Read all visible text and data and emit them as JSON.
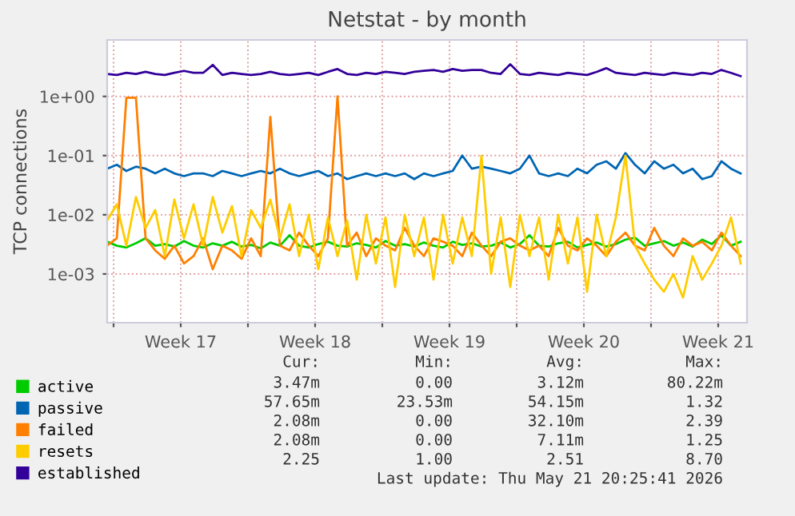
{
  "chart_data": {
    "type": "line",
    "title": "Netstat - by month",
    "ylabel": "TCP connections",
    "log": "y",
    "grid": true,
    "legend": "bottom left",
    "marker": "none",
    "line_style": "solid",
    "xlim": [
      "2026-04-19T16:00",
      "2026-05-23T00:00"
    ],
    "ylim": [
      0.00015,
      9
    ],
    "xticks": [
      {
        "value": "2026-04-20",
        "label": null
      },
      {
        "value": "2026-04-23T12:00",
        "label": "Week 17"
      },
      {
        "value": "2026-04-27",
        "label": null
      },
      {
        "value": "2026-04-30T12:00",
        "label": "Week 18"
      },
      {
        "value": "2026-05-04",
        "label": null
      },
      {
        "value": "2026-05-07T12:00",
        "label": "Week 19"
      },
      {
        "value": "2026-05-11",
        "label": null
      },
      {
        "value": "2026-05-14T12:00",
        "label": "Week 20"
      },
      {
        "value": "2026-05-18",
        "label": null
      },
      {
        "value": "2026-05-21T12:00",
        "label": "Week 21"
      }
    ],
    "yticks": [
      {
        "value": 1,
        "label": "1e+00"
      },
      {
        "value": 0.1,
        "label": "1e-01"
      },
      {
        "value": 0.01,
        "label": "1e-02"
      },
      {
        "value": 0.001,
        "label": "1e-03"
      }
    ],
    "x": [
      "2026-04-19T16:00",
      "2026-04-20T04:00",
      "2026-04-20T16:00",
      "2026-04-21T04:00",
      "2026-04-21T16:00",
      "2026-04-22T04:00",
      "2026-04-22T16:00",
      "2026-04-23T04:00",
      "2026-04-23T16:00",
      "2026-04-24T04:00",
      "2026-04-24T16:00",
      "2026-04-25T04:00",
      "2026-04-25T16:00",
      "2026-04-26T04:00",
      "2026-04-26T16:00",
      "2026-04-27T04:00",
      "2026-04-27T16:00",
      "2026-04-28T04:00",
      "2026-04-28T16:00",
      "2026-04-29T04:00",
      "2026-04-29T16:00",
      "2026-04-30T04:00",
      "2026-04-30T16:00",
      "2026-05-01T04:00",
      "2026-05-01T16:00",
      "2026-05-02T04:00",
      "2026-05-02T16:00",
      "2026-05-03T04:00",
      "2026-05-03T16:00",
      "2026-05-04T04:00",
      "2026-05-04T16:00",
      "2026-05-05T04:00",
      "2026-05-05T16:00",
      "2026-05-06T04:00",
      "2026-05-06T16:00",
      "2026-05-07T04:00",
      "2026-05-07T16:00",
      "2026-05-08T04:00",
      "2026-05-08T16:00",
      "2026-05-09T04:00",
      "2026-05-09T16:00",
      "2026-05-10T04:00",
      "2026-05-10T16:00",
      "2026-05-11T04:00",
      "2026-05-11T16:00",
      "2026-05-12T04:00",
      "2026-05-12T16:00",
      "2026-05-13T04:00",
      "2026-05-13T16:00",
      "2026-05-14T04:00",
      "2026-05-14T16:00",
      "2026-05-15T04:00",
      "2026-05-15T16:00",
      "2026-05-16T04:00",
      "2026-05-16T16:00",
      "2026-05-17T04:00",
      "2026-05-17T16:00",
      "2026-05-18T04:00",
      "2026-05-18T16:00",
      "2026-05-19T04:00",
      "2026-05-19T16:00",
      "2026-05-20T04:00",
      "2026-05-20T16:00",
      "2026-05-21T04:00",
      "2026-05-21T16:00",
      "2026-05-22T04:00",
      "2026-05-22T16:00"
    ],
    "series": [
      {
        "name": "active",
        "color": "#00cc00",
        "values": [
          0.0035,
          0.003,
          0.0028,
          0.0033,
          0.004,
          0.003,
          0.0032,
          0.0029,
          0.0036,
          0.003,
          0.0028,
          0.0033,
          0.003,
          0.0035,
          0.0029,
          0.0031,
          0.0027,
          0.0034,
          0.003,
          0.0045,
          0.003,
          0.0028,
          0.0032,
          0.0035,
          0.003,
          0.0029,
          0.0033,
          0.0031,
          0.0028,
          0.0036,
          0.003,
          0.0032,
          0.0029,
          0.0034,
          0.003,
          0.0028,
          0.0035,
          0.0031,
          0.0033,
          0.0029,
          0.003,
          0.0034,
          0.0028,
          0.0032,
          0.0045,
          0.003,
          0.0029,
          0.0033,
          0.0035,
          0.0028,
          0.0031,
          0.0034,
          0.0029,
          0.0032,
          0.0038,
          0.0041,
          0.003,
          0.0033,
          0.0036,
          0.003,
          0.0034,
          0.0029,
          0.0038,
          0.0032,
          0.0045,
          0.003,
          0.0035
        ]
      },
      {
        "name": "passive",
        "color": "#0066b3",
        "values": [
          0.06,
          0.07,
          0.055,
          0.065,
          0.06,
          0.05,
          0.06,
          0.05,
          0.045,
          0.05,
          0.05,
          0.045,
          0.055,
          0.05,
          0.045,
          0.05,
          0.055,
          0.05,
          0.06,
          0.05,
          0.045,
          0.05,
          0.055,
          0.045,
          0.05,
          0.04,
          0.045,
          0.05,
          0.045,
          0.05,
          0.045,
          0.05,
          0.04,
          0.05,
          0.045,
          0.05,
          0.055,
          0.1,
          0.06,
          0.065,
          0.06,
          0.055,
          0.05,
          0.06,
          0.1,
          0.05,
          0.045,
          0.05,
          0.045,
          0.06,
          0.05,
          0.07,
          0.08,
          0.06,
          0.11,
          0.07,
          0.05,
          0.08,
          0.06,
          0.07,
          0.05,
          0.06,
          0.04,
          0.045,
          0.08,
          0.06,
          0.05
        ]
      },
      {
        "name": "failed",
        "color": "#ff8000",
        "values": [
          0.003,
          0.004,
          0.95,
          0.95,
          0.004,
          0.0025,
          0.0018,
          0.003,
          0.0015,
          0.002,
          0.004,
          0.0012,
          0.003,
          0.0025,
          0.0018,
          0.004,
          0.002,
          0.45,
          0.003,
          0.0025,
          0.005,
          0.003,
          0.002,
          0.004,
          1.0,
          0.003,
          0.005,
          0.002,
          0.004,
          0.003,
          0.0025,
          0.006,
          0.003,
          0.002,
          0.004,
          0.0035,
          0.003,
          0.002,
          0.005,
          0.003,
          0.002,
          0.0035,
          0.004,
          0.003,
          0.0025,
          0.003,
          0.002,
          0.006,
          0.003,
          0.0025,
          0.004,
          0.003,
          0.002,
          0.0035,
          0.005,
          0.003,
          0.0025,
          0.006,
          0.003,
          0.002,
          0.004,
          0.003,
          0.0035,
          0.0025,
          0.005,
          0.003,
          0.002
        ]
      },
      {
        "name": "resets",
        "color": "#ffcc00",
        "values": [
          0.008,
          0.015,
          0.003,
          0.02,
          0.006,
          0.012,
          0.002,
          0.018,
          0.004,
          0.015,
          0.003,
          0.02,
          0.005,
          0.014,
          0.002,
          0.012,
          0.006,
          0.018,
          0.004,
          0.015,
          0.002,
          0.01,
          0.0012,
          0.009,
          0.002,
          0.008,
          0.0008,
          0.01,
          0.0015,
          0.009,
          0.0006,
          0.01,
          0.002,
          0.009,
          0.0008,
          0.01,
          0.0015,
          0.009,
          0.002,
          0.1,
          0.001,
          0.009,
          0.0006,
          0.01,
          0.002,
          0.009,
          0.0008,
          0.01,
          0.0015,
          0.009,
          0.0005,
          0.01,
          0.002,
          0.009,
          0.1,
          0.003,
          0.0015,
          0.0008,
          0.0005,
          0.001,
          0.0004,
          0.002,
          0.0008,
          0.0015,
          0.003,
          0.009,
          0.0015
        ]
      },
      {
        "name": "established",
        "color": "#330099",
        "values": [
          2.4,
          2.3,
          2.5,
          2.4,
          2.6,
          2.4,
          2.3,
          2.5,
          2.7,
          2.5,
          2.5,
          3.4,
          2.3,
          2.5,
          2.4,
          2.3,
          2.4,
          2.6,
          2.4,
          2.3,
          2.4,
          2.5,
          2.3,
          2.6,
          2.9,
          2.4,
          2.3,
          2.5,
          2.4,
          2.6,
          2.5,
          2.4,
          2.6,
          2.7,
          2.8,
          2.6,
          2.9,
          2.7,
          2.8,
          2.8,
          2.5,
          2.4,
          3.5,
          2.4,
          2.3,
          2.5,
          2.4,
          2.3,
          2.5,
          2.4,
          2.3,
          2.6,
          3.0,
          2.5,
          2.4,
          2.3,
          2.5,
          2.4,
          2.3,
          2.5,
          2.4,
          2.3,
          2.5,
          2.4,
          2.8,
          2.5,
          2.2
        ]
      }
    ],
    "annotations": [
      "Cur:",
      "Min:",
      "Avg:",
      "Max:",
      "3.47m",
      "0.00",
      "3.12m",
      "80.22m",
      "57.65m",
      "23.53m",
      "54.15m",
      "1.32",
      "2.08m",
      "0.00",
      "32.10m",
      "2.39",
      "2.08m",
      "0.00",
      "7.11m",
      "1.25",
      "2.25",
      "1.00",
      "2.51",
      "8.70",
      "Last update: Thu May 21 20:25:41 2026"
    ]
  }
}
